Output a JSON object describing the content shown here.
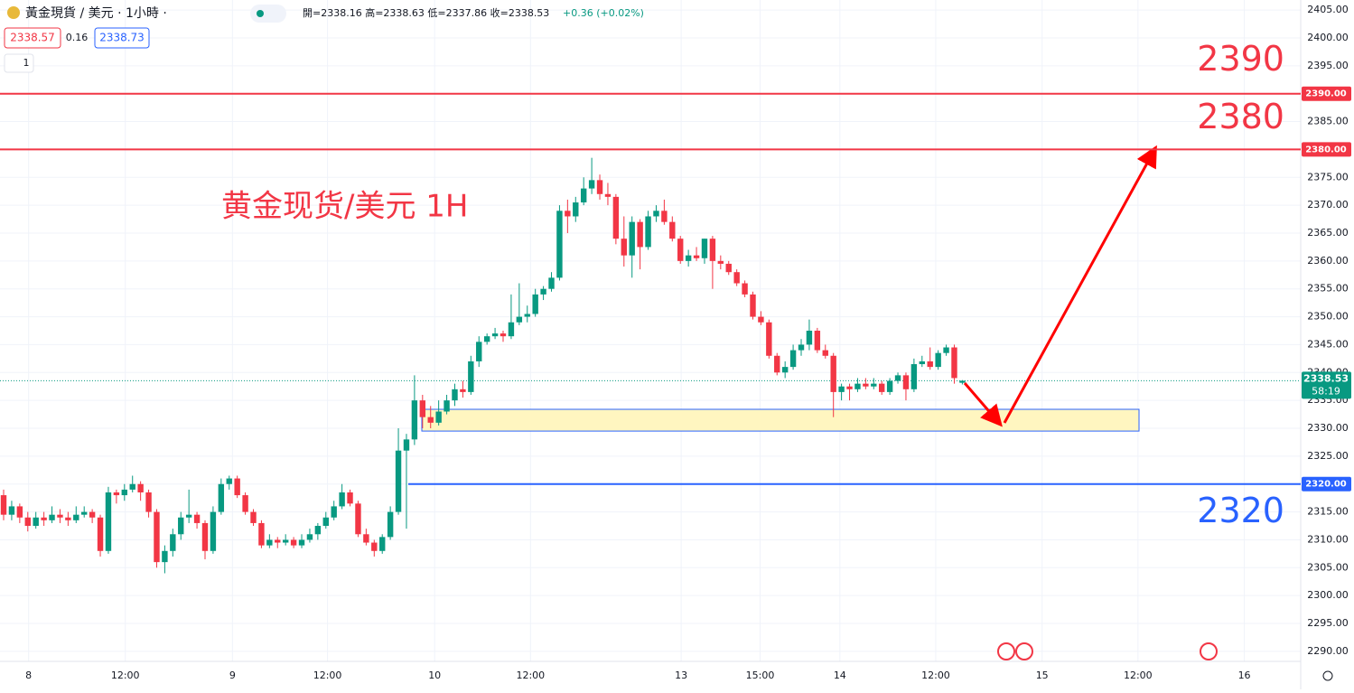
{
  "chart_data": {
    "type": "candlestick",
    "header": {
      "title": "黃金現貨 / 美元 · 1小時 ·",
      "ohlc": "開=2338.16 高=2338.63 低=2337.86 收=2338.53",
      "change": "+0.36 (+0.02%)",
      "bid": "2338.57",
      "spread": "0.16",
      "ask": "2338.73",
      "interval": "1"
    },
    "annotation": "黄金现货/美元 1H",
    "up_color": "#089981",
    "down_color": "#f23645",
    "candles": [
      [
        2318,
        2319,
        2313.5,
        2314.5
      ],
      [
        2314.5,
        2317,
        2313.5,
        2316
      ],
      [
        2316,
        2316.5,
        2313,
        2314
      ],
      [
        2314,
        2315,
        2311.5,
        2312.5
      ],
      [
        2312.5,
        2315,
        2312,
        2314
      ],
      [
        2314,
        2315,
        2312.5,
        2313.5
      ],
      [
        2313.5,
        2316,
        2313,
        2314.5
      ],
      [
        2314.5,
        2315.5,
        2313,
        2314
      ],
      [
        2314,
        2315,
        2312.5,
        2313.5
      ],
      [
        2313.5,
        2316,
        2313,
        2314.5
      ],
      [
        2314.5,
        2316,
        2314,
        2315
      ],
      [
        2315,
        2315.5,
        2313,
        2314
      ],
      [
        2314,
        2314.5,
        2307,
        2308
      ],
      [
        2308,
        2319.5,
        2307.5,
        2318.5
      ],
      [
        2318.5,
        2319,
        2316.5,
        2318
      ],
      [
        2318,
        2320,
        2317,
        2319
      ],
      [
        2319,
        2321.5,
        2318.5,
        2320
      ],
      [
        2320,
        2320.5,
        2317,
        2318.5
      ],
      [
        2318.5,
        2319,
        2314,
        2315
      ],
      [
        2315,
        2315.5,
        2305,
        2306
      ],
      [
        2306,
        2309,
        2304,
        2308
      ],
      [
        2308,
        2312,
        2307,
        2311
      ],
      [
        2311,
        2315,
        2310,
        2314
      ],
      [
        2314,
        2319,
        2313,
        2314.5
      ],
      [
        2314.5,
        2315,
        2312,
        2313
      ],
      [
        2313,
        2313.5,
        2306.5,
        2308
      ],
      [
        2308,
        2316,
        2307.5,
        2315
      ],
      [
        2315,
        2321,
        2314.5,
        2320
      ],
      [
        2320,
        2321.5,
        2319,
        2321
      ],
      [
        2321,
        2321.5,
        2317.5,
        2318
      ],
      [
        2318,
        2318.5,
        2314.5,
        2315
      ],
      [
        2315,
        2315.5,
        2312.5,
        2313
      ],
      [
        2313,
        2313.5,
        2308.5,
        2309
      ],
      [
        2309,
        2311,
        2308.5,
        2310
      ],
      [
        2310,
        2310.5,
        2308.5,
        2309.5
      ],
      [
        2309.5,
        2311,
        2309,
        2310
      ],
      [
        2310,
        2310.5,
        2308.5,
        2309
      ],
      [
        2309,
        2311,
        2308.5,
        2310
      ],
      [
        2310,
        2312,
        2309.5,
        2311
      ],
      [
        2311,
        2313,
        2310,
        2312.5
      ],
      [
        2312.5,
        2315,
        2312,
        2314
      ],
      [
        2314,
        2317,
        2313.5,
        2316
      ],
      [
        2316,
        2320,
        2315.5,
        2318.5
      ],
      [
        2318.5,
        2319,
        2316,
        2316.5
      ],
      [
        2316.5,
        2317,
        2310.5,
        2311
      ],
      [
        2311,
        2312,
        2309,
        2309.5
      ],
      [
        2309.5,
        2310,
        2307,
        2308
      ],
      [
        2308,
        2311,
        2307.5,
        2310.5
      ],
      [
        2310.5,
        2316,
        2310,
        2315
      ],
      [
        2315,
        2330,
        2314.5,
        2326
      ],
      [
        2326,
        2329,
        2312,
        2328
      ],
      [
        2328,
        2339.5,
        2327,
        2335
      ],
      [
        2335,
        2336,
        2330,
        2332
      ],
      [
        2332,
        2334,
        2330,
        2331
      ],
      [
        2331,
        2335,
        2330.5,
        2333
      ],
      [
        2333,
        2336,
        2332.5,
        2335
      ],
      [
        2335,
        2338,
        2334,
        2337
      ],
      [
        2337,
        2338.5,
        2335.5,
        2336.5
      ],
      [
        2336.5,
        2343,
        2336,
        2342
      ],
      [
        2342,
        2346.5,
        2341,
        2345.5
      ],
      [
        2345.5,
        2347,
        2345,
        2346.5
      ],
      [
        2346.5,
        2348,
        2346,
        2347
      ],
      [
        2347,
        2347.5,
        2345.5,
        2346.5
      ],
      [
        2346.5,
        2354,
        2346,
        2349
      ],
      [
        2349,
        2356,
        2348.5,
        2350
      ],
      [
        2350,
        2352,
        2349,
        2350.5
      ],
      [
        2350.5,
        2355,
        2350,
        2354
      ],
      [
        2354,
        2355.5,
        2353,
        2355
      ],
      [
        2355,
        2358,
        2354.5,
        2357
      ],
      [
        2357,
        2370,
        2356.5,
        2369
      ],
      [
        2369,
        2371,
        2365,
        2368
      ],
      [
        2368,
        2371.5,
        2367,
        2370.5
      ],
      [
        2370.5,
        2375,
        2370,
        2373
      ],
      [
        2373,
        2378.5,
        2372,
        2374.5
      ],
      [
        2374.5,
        2375.5,
        2371,
        2372
      ],
      [
        2372,
        2374,
        2370,
        2371.5
      ],
      [
        2371.5,
        2372,
        2363,
        2364
      ],
      [
        2364,
        2368,
        2359,
        2361
      ],
      [
        2361,
        2368,
        2357,
        2367
      ],
      [
        2367,
        2367.5,
        2358.5,
        2362.5
      ],
      [
        2362.5,
        2369,
        2362,
        2368
      ],
      [
        2368,
        2370,
        2367,
        2369
      ],
      [
        2369,
        2371,
        2366.5,
        2367
      ],
      [
        2367,
        2368,
        2363.5,
        2364
      ],
      [
        2364,
        2364.5,
        2359.5,
        2360
      ],
      [
        2360,
        2362,
        2359,
        2361
      ],
      [
        2361,
        2362.5,
        2360,
        2360.5
      ],
      [
        2360.5,
        2364,
        2359.5,
        2364
      ],
      [
        2364,
        2364.5,
        2355,
        2360
      ],
      [
        2360,
        2361,
        2358.5,
        2359.5
      ],
      [
        2359.5,
        2360,
        2357.5,
        2358
      ],
      [
        2358,
        2358.5,
        2355.5,
        2356
      ],
      [
        2356,
        2356.5,
        2353.5,
        2354
      ],
      [
        2354,
        2354.5,
        2349.5,
        2350
      ],
      [
        2350,
        2351,
        2348.5,
        2349
      ],
      [
        2349,
        2349.5,
        2342.5,
        2343
      ],
      [
        2343,
        2343.5,
        2339.5,
        2340
      ],
      [
        2340,
        2342,
        2339,
        2341
      ],
      [
        2341,
        2345,
        2340.5,
        2344
      ],
      [
        2344,
        2346,
        2343,
        2345
      ],
      [
        2345,
        2349.5,
        2344,
        2347.5
      ],
      [
        2347.5,
        2348,
        2343.5,
        2344
      ],
      [
        2344,
        2345,
        2342.5,
        2343
      ],
      [
        2343,
        2343.5,
        2332,
        2336.5
      ],
      [
        2336.5,
        2338,
        2335,
        2337.5
      ],
      [
        2337.5,
        2338,
        2335,
        2337
      ],
      [
        2337,
        2339,
        2336.5,
        2338
      ],
      [
        2338,
        2339,
        2337,
        2337.5
      ],
      [
        2337.5,
        2339,
        2337,
        2338
      ],
      [
        2338,
        2338.5,
        2336,
        2336.5
      ],
      [
        2336.5,
        2339,
        2336,
        2338.5
      ],
      [
        2338.5,
        2340,
        2338,
        2339.5
      ],
      [
        2339.5,
        2340,
        2335,
        2337
      ],
      [
        2337,
        2342.5,
        2336.5,
        2341.5
      ],
      [
        2341.5,
        2343,
        2341,
        2342
      ],
      [
        2342,
        2344.5,
        2340.5,
        2341
      ],
      [
        2341,
        2344,
        2340.5,
        2343.5
      ],
      [
        2343.5,
        2345,
        2343,
        2344.5
      ],
      [
        2344.5,
        2345,
        2338,
        2339
      ],
      [
        2338.16,
        2338.63,
        2337.86,
        2338.53
      ]
    ],
    "xlim": [
      -0.45,
      161
    ],
    "xticks": [
      {
        "value": 3.1,
        "label": "8"
      },
      {
        "value": 15.1,
        "label": "12:00"
      },
      {
        "value": 28.4,
        "label": "9"
      },
      {
        "value": 40.2,
        "label": "12:00"
      },
      {
        "value": 53.5,
        "label": "10"
      },
      {
        "value": 65.4,
        "label": "12:00"
      },
      {
        "value": 84.1,
        "label": "13"
      },
      {
        "value": 93.9,
        "label": "15:00"
      },
      {
        "value": 103.8,
        "label": "14"
      },
      {
        "value": 115.7,
        "label": "12:00"
      },
      {
        "value": 128.9,
        "label": "15"
      },
      {
        "value": 140.8,
        "label": "12:00"
      },
      {
        "value": 154,
        "label": "16"
      }
    ],
    "ylim": [
      2288.2,
      2406.8
    ],
    "yticks": [
      {
        "value": 2290,
        "label": "2290.00"
      },
      {
        "value": 2295,
        "label": "2295.00"
      },
      {
        "value": 2300,
        "label": "2300.00"
      },
      {
        "value": 2305,
        "label": "2305.00"
      },
      {
        "value": 2310,
        "label": "2310.00"
      },
      {
        "value": 2315,
        "label": "2315.00"
      },
      {
        "value": 2320,
        "label": "2320.00"
      },
      {
        "value": 2325,
        "label": "2325.00"
      },
      {
        "value": 2330,
        "label": "2330.00"
      },
      {
        "value": 2335,
        "label": "2335.00"
      },
      {
        "value": 2340,
        "label": "2340.00"
      },
      {
        "value": 2345,
        "label": "2345.00"
      },
      {
        "value": 2350,
        "label": "2350.00"
      },
      {
        "value": 2355,
        "label": "2355.00"
      },
      {
        "value": 2360,
        "label": "2360.00"
      },
      {
        "value": 2365,
        "label": "2365.00"
      },
      {
        "value": 2370,
        "label": "2370.00"
      },
      {
        "value": 2375,
        "label": "2375.00"
      },
      {
        "value": 2380,
        "label": "2380.00"
      },
      {
        "value": 2385,
        "label": "2385.00"
      },
      {
        "value": 2390,
        "label": "2390.00"
      },
      {
        "value": 2395,
        "label": "2395.00"
      },
      {
        "value": 2400,
        "label": "2400.00"
      },
      {
        "value": 2405,
        "label": "2405.00"
      }
    ],
    "grid": true,
    "levels": [
      {
        "value": 2390,
        "label": "2390",
        "axis_label": "2390.00",
        "color": "#f23645"
      },
      {
        "value": 2380,
        "label": "2380",
        "axis_label": "2380.00",
        "color": "#f23645"
      },
      {
        "value": 2320,
        "label": "2320",
        "axis_label": "2320.00",
        "color": "#2962ff"
      }
    ],
    "zone": {
      "low": 2329.5,
      "high": 2333.4,
      "color": "#fff6c0"
    },
    "last": {
      "value": 2338.53,
      "label": "2338.53",
      "countdown": "58:19",
      "color": "#089981"
    }
  }
}
